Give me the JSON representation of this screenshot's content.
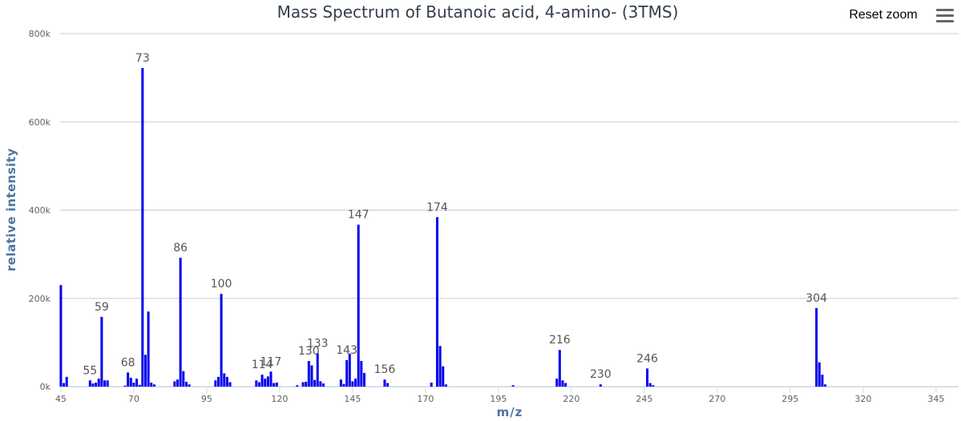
{
  "chart_data": {
    "type": "bar",
    "title": "Mass Spectrum of Butanoic acid, 4-amino- (3TMS)",
    "xlabel": "m/z",
    "ylabel": "relative intensity",
    "xlim": [
      44,
      351
    ],
    "ylim": [
      0,
      800000
    ],
    "x_ticks": [
      45,
      70,
      95,
      120,
      145,
      170,
      195,
      220,
      245,
      270,
      295,
      320,
      345
    ],
    "y_ticks": [
      {
        "value": 0,
        "label": "0k"
      },
      {
        "value": 200000,
        "label": "200k"
      },
      {
        "value": 400000,
        "label": "400k"
      },
      {
        "value": 600000,
        "label": "600k"
      },
      {
        "value": 800000,
        "label": "800k"
      }
    ],
    "grid": true,
    "legend": "none",
    "bar_color": "#0000ee",
    "series": [
      {
        "name": "Butanoic acid, 4-amino- (3TMS)",
        "points": [
          [
            45,
            230000
          ],
          [
            46,
            8000
          ],
          [
            47,
            22000
          ],
          [
            55,
            14000
          ],
          [
            56,
            7000
          ],
          [
            57,
            9000
          ],
          [
            58,
            18000
          ],
          [
            59,
            158000
          ],
          [
            60,
            14000
          ],
          [
            61,
            14000
          ],
          [
            67,
            2000
          ],
          [
            68,
            32000
          ],
          [
            69,
            20000
          ],
          [
            70,
            9000
          ],
          [
            71,
            18000
          ],
          [
            72,
            4000
          ],
          [
            73,
            722000
          ],
          [
            74,
            72000
          ],
          [
            75,
            170000
          ],
          [
            76,
            9000
          ],
          [
            77,
            5000
          ],
          [
            84,
            12000
          ],
          [
            85,
            16000
          ],
          [
            86,
            292000
          ],
          [
            87,
            35000
          ],
          [
            88,
            11000
          ],
          [
            89,
            5000
          ],
          [
            98,
            14000
          ],
          [
            99,
            22000
          ],
          [
            100,
            210000
          ],
          [
            101,
            30000
          ],
          [
            102,
            22000
          ],
          [
            103,
            10000
          ],
          [
            112,
            14000
          ],
          [
            113,
            10000
          ],
          [
            114,
            27000
          ],
          [
            115,
            18000
          ],
          [
            116,
            23000
          ],
          [
            117,
            34000
          ],
          [
            118,
            8000
          ],
          [
            119,
            9000
          ],
          [
            126,
            3000
          ],
          [
            128,
            10000
          ],
          [
            129,
            11000
          ],
          [
            130,
            58000
          ],
          [
            131,
            48000
          ],
          [
            132,
            15000
          ],
          [
            133,
            75000
          ],
          [
            134,
            12000
          ],
          [
            135,
            7000
          ],
          [
            141,
            16000
          ],
          [
            142,
            6000
          ],
          [
            143,
            60000
          ],
          [
            144,
            75000
          ],
          [
            145,
            12000
          ],
          [
            146,
            18000
          ],
          [
            147,
            367000
          ],
          [
            148,
            58000
          ],
          [
            149,
            31000
          ],
          [
            156,
            16000
          ],
          [
            157,
            8000
          ],
          [
            172,
            9000
          ],
          [
            174,
            384000
          ],
          [
            175,
            92000
          ],
          [
            176,
            46000
          ],
          [
            177,
            5000
          ],
          [
            200,
            3000
          ],
          [
            215,
            18000
          ],
          [
            216,
            83000
          ],
          [
            217,
            14000
          ],
          [
            218,
            8000
          ],
          [
            230,
            5000
          ],
          [
            246,
            41000
          ],
          [
            247,
            8000
          ],
          [
            248,
            3000
          ],
          [
            304,
            178000
          ],
          [
            305,
            55000
          ],
          [
            306,
            27000
          ],
          [
            307,
            5000
          ]
        ]
      }
    ],
    "peak_labels": [
      55,
      59,
      68,
      73,
      86,
      100,
      114,
      117,
      130,
      133,
      143,
      147,
      156,
      174,
      216,
      230,
      246,
      304
    ]
  },
  "controls": {
    "reset_zoom_label": "Reset zoom",
    "menu_icon": "hamburger-menu-icon"
  }
}
